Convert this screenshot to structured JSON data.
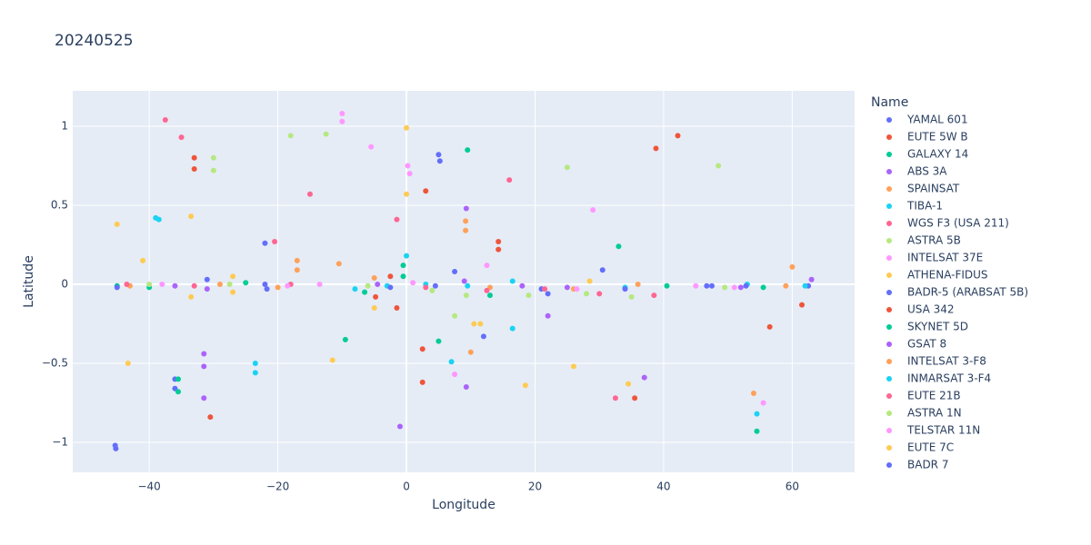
{
  "chart_data": {
    "type": "scatter",
    "title": "20240525",
    "x_label": "Longitude",
    "y_label": "Latitude",
    "legend_title": "Name",
    "xlim": [
      -51.9,
      69.7
    ],
    "ylim": [
      -1.19,
      1.224
    ],
    "xticks": [
      {
        "value": -40,
        "label": "−40"
      },
      {
        "value": -20,
        "label": "−20"
      },
      0,
      20,
      40,
      60
    ],
    "yticks": [
      {
        "value": -1,
        "label": "−1"
      },
      {
        "value": -0.5,
        "label": "−0.5"
      },
      0,
      0.5,
      1
    ],
    "grid": true,
    "legend": "right",
    "series": [
      {
        "name": "YAMAL 601",
        "color": "#636efa",
        "x": [
          -45.3,
          -45.2,
          5,
          5.2,
          -36,
          -36,
          30.5,
          12
        ],
        "y": [
          -1.02,
          -1.04,
          0.82,
          0.78,
          -0.6,
          -0.66,
          0.09,
          -0.33
        ]
      },
      {
        "name": "EUTE 5W B",
        "color": "#EF553B",
        "x": [
          -33,
          -33,
          -4.8,
          3,
          -1.5,
          56.5,
          38.8,
          42.2
        ],
        "y": [
          0.8,
          0.73,
          -0.08,
          0.59,
          -0.15,
          -0.27,
          0.86,
          0.94
        ]
      },
      {
        "name": "GALAXY 14",
        "color": "#00cc96",
        "x": [
          -35.5,
          -35.5,
          -0.5,
          -0.5,
          9.5,
          33,
          54.5,
          -9.5
        ],
        "y": [
          -0.6,
          -0.68,
          0.12,
          0.05,
          0.85,
          0.24,
          -0.93,
          -0.35
        ]
      },
      {
        "name": "ABS 3A",
        "color": "#ab63fa",
        "x": [
          -31.5,
          -31.5,
          9.3,
          22,
          -1,
          63,
          -31.5,
          9.3
        ],
        "y": [
          -0.44,
          -0.52,
          0.48,
          -0.2,
          -0.9,
          0.03,
          -0.72,
          -0.65
        ]
      },
      {
        "name": "SPAINSAT",
        "color": "#FFA15A",
        "x": [
          -17,
          -17,
          9.2,
          9.2,
          54,
          60,
          10,
          -10.5
        ],
        "y": [
          0.15,
          0.09,
          0.4,
          0.34,
          -0.69,
          0.11,
          -0.43,
          0.13
        ]
      },
      {
        "name": "TIBA-1",
        "color": "#19d3f3",
        "x": [
          -39,
          -38.5,
          -23.5,
          -23.5,
          54.5,
          0,
          7,
          16.5
        ],
        "y": [
          0.42,
          0.41,
          -0.5,
          -0.56,
          -0.82,
          0.18,
          -0.49,
          -0.28
        ]
      },
      {
        "name": "WGS F3 (USA 211)",
        "color": "#FF6692",
        "x": [
          -37.5,
          -35,
          -20.5,
          -15,
          -1.5,
          16,
          32.5
        ],
        "y": [
          1.04,
          0.93,
          0.27,
          0.57,
          0.41,
          0.66,
          -0.72
        ]
      },
      {
        "name": "ASTRA 5B",
        "color": "#B6E880",
        "x": [
          -30,
          -30,
          -18,
          -12.5,
          25,
          48.5,
          35,
          7.5
        ],
        "y": [
          0.8,
          0.72,
          0.94,
          0.95,
          0.74,
          0.75,
          -0.08,
          -0.2
        ]
      },
      {
        "name": "INTELSAT 37E",
        "color": "#FF97FF",
        "x": [
          -10,
          -10,
          -5.5,
          0.2,
          0.5,
          55.5,
          29,
          7.5
        ],
        "y": [
          1.08,
          1.03,
          0.87,
          0.75,
          0.7,
          -0.75,
          0.47,
          -0.57
        ]
      },
      {
        "name": "ATHENA-FIDUS",
        "color": "#FECB52",
        "x": [
          -45,
          -41,
          -33.5,
          0,
          0,
          -27,
          26,
          18.5,
          -11.5
        ],
        "y": [
          0.38,
          0.15,
          0.43,
          0.99,
          0.57,
          0.05,
          -0.52,
          -0.64,
          -0.48
        ]
      },
      {
        "name": "BADR-5 (ARABSAT 5B)",
        "color": "#636efa",
        "x": [
          -22,
          -22,
          -31,
          7.5,
          21,
          46.7,
          62.5
        ],
        "y": [
          0.26,
          0,
          0.03,
          0.08,
          -0.03,
          -0.01,
          -0.01
        ]
      },
      {
        "name": "USA 342",
        "color": "#EF553B",
        "x": [
          -30.5,
          -2.5,
          2.5,
          2.5,
          14.3,
          14.3,
          61.5,
          35.5
        ],
        "y": [
          -0.84,
          0.05,
          -0.41,
          -0.62,
          0.27,
          0.22,
          -0.13,
          -0.72
        ]
      },
      {
        "name": "SKYNET 5D",
        "color": "#00cc96",
        "x": [
          -45,
          -40,
          -25,
          5,
          13,
          40.5,
          55.5,
          -6.5
        ],
        "y": [
          -0.01,
          -0.02,
          0.01,
          -0.36,
          -0.07,
          -0.01,
          -0.02,
          -0.05
        ]
      },
      {
        "name": "GSAT 8",
        "color": "#ab63fa",
        "x": [
          -36,
          -31,
          -4.5,
          9,
          18,
          25,
          37,
          52
        ],
        "y": [
          -0.01,
          -0.03,
          0,
          0.02,
          -0.01,
          -0.02,
          -0.59,
          -0.02
        ]
      },
      {
        "name": "INTELSAT 3-F8",
        "color": "#FFA15A",
        "x": [
          -43,
          -29,
          -20,
          -5,
          13,
          26,
          36,
          59
        ],
        "y": [
          -0.01,
          0,
          -0.02,
          0.04,
          -0.02,
          -0.03,
          0,
          -0.01
        ]
      },
      {
        "name": "INMARSAT 3-F4",
        "color": "#19d3f3",
        "x": [
          -8,
          -3,
          3,
          9.5,
          16.5,
          34,
          53,
          62
        ],
        "y": [
          -0.03,
          -0.01,
          0,
          -0.01,
          0.02,
          -0.02,
          0,
          -0.01
        ]
      },
      {
        "name": "EUTE 21B",
        "color": "#FF6692",
        "x": [
          -43.5,
          -33,
          -18,
          3,
          12.5,
          21.5,
          30,
          38.5
        ],
        "y": [
          0,
          -0.01,
          0,
          -0.02,
          -0.04,
          -0.03,
          -0.06,
          -0.07
        ]
      },
      {
        "name": "ASTRA 1N",
        "color": "#B6E880",
        "x": [
          -40,
          -27.5,
          -6,
          4,
          9.3,
          19,
          28,
          49.5
        ],
        "y": [
          0,
          0,
          -0.01,
          -0.04,
          -0.07,
          -0.07,
          -0.06,
          -0.02
        ]
      },
      {
        "name": "TELSTAR 11N",
        "color": "#FF97FF",
        "x": [
          -38,
          -18.5,
          -13.5,
          1,
          12.5,
          26.5,
          45,
          51
        ],
        "y": [
          0,
          -0.01,
          0,
          0.01,
          0.12,
          -0.03,
          -0.01,
          -0.02
        ]
      },
      {
        "name": "EUTE 7C",
        "color": "#FECB52",
        "x": [
          -43.3,
          -33.5,
          -27,
          -5,
          10.5,
          11.5,
          34.5,
          28.5
        ],
        "y": [
          -0.5,
          -0.08,
          -0.05,
          -0.15,
          -0.25,
          -0.25,
          -0.63,
          0.02
        ]
      },
      {
        "name": "BADR 7",
        "color": "#636efa",
        "x": [
          -45,
          -21.7,
          -2.5,
          4.5,
          22,
          34,
          47.5,
          52.8
        ],
        "y": [
          -0.02,
          -0.03,
          -0.02,
          -0.01,
          -0.06,
          -0.03,
          -0.01,
          -0.01
        ]
      }
    ]
  }
}
